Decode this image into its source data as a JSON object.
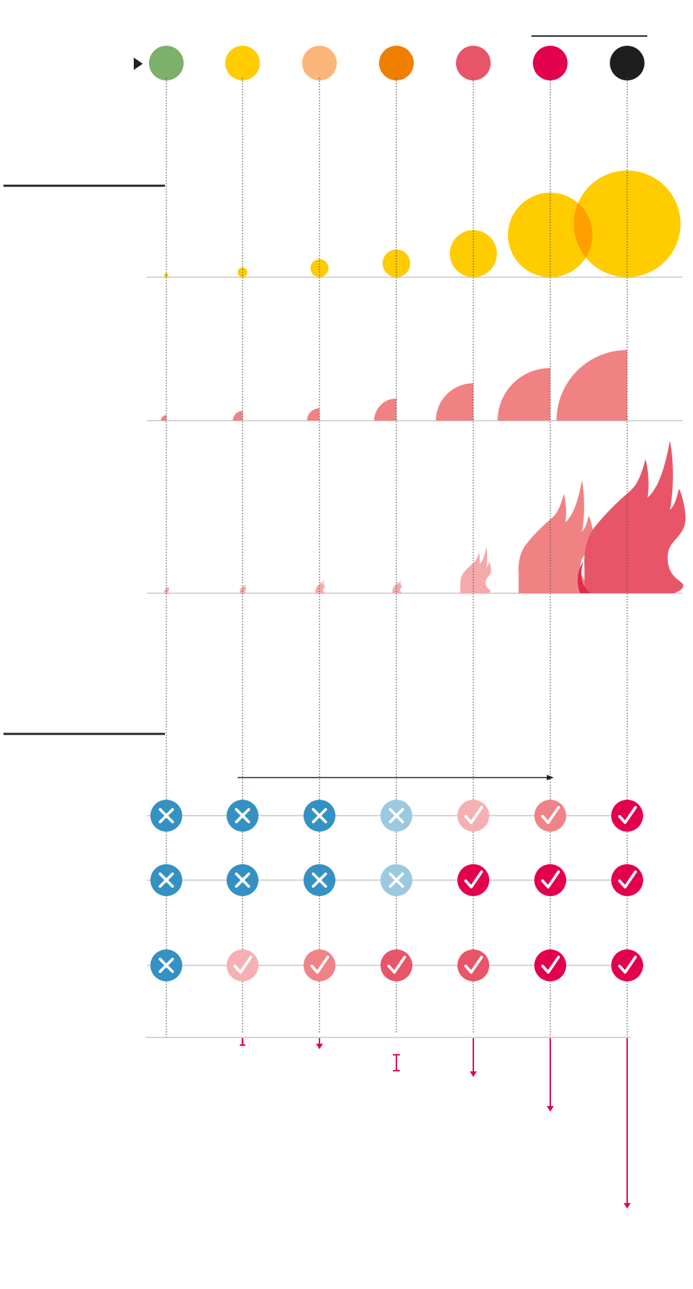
{
  "colors": {
    "background": "#ffffff",
    "axis": "#bbbbbb",
    "guide": "#555555",
    "rule": "#222222",
    "heat_circle": "#ffcc00",
    "heat_overlap": "#ff9f00",
    "drought_arc": "#f08283",
    "flame_light": "#f6a9aa",
    "flame_mid": "#f08283",
    "flame_dark": "#e85568",
    "flame_overlap": "#de2d4a",
    "arrow": "#e0004e",
    "x_strong": "#3591c3",
    "x_light": "#9bc9e0"
  },
  "levels": [
    {
      "id": "level-1",
      "color": "#7db06b"
    },
    {
      "id": "level-2",
      "color": "#ffcc00"
    },
    {
      "id": "level-3",
      "color": "#f9b57a"
    },
    {
      "id": "level-4",
      "color": "#f07f00"
    },
    {
      "id": "level-5",
      "color": "#e85468"
    },
    {
      "id": "level-6",
      "color": "#e3004c"
    },
    {
      "id": "level-7",
      "color": "#1e1e1e"
    }
  ],
  "heat_circle_radius": [
    3,
    7,
    13,
    20,
    34,
    61,
    77
  ],
  "drought_arc_radius": [
    8,
    14,
    18,
    32,
    54,
    76,
    102
  ],
  "flame_height": [
    11,
    14,
    20,
    20,
    67,
    163,
    220
  ],
  "flame_tone": [
    "light",
    "light",
    "light",
    "light",
    "light",
    "mid",
    "dark"
  ],
  "status_rows": [
    {
      "id": "status-row-1",
      "marks": [
        {
          "type": "x",
          "color": "#3591c3"
        },
        {
          "type": "x",
          "color": "#3591c3"
        },
        {
          "type": "x",
          "color": "#3591c3"
        },
        {
          "type": "x",
          "color": "#9bc9e0"
        },
        {
          "type": "check",
          "color": "#f6b0b3"
        },
        {
          "type": "check",
          "color": "#ef8387"
        },
        {
          "type": "check",
          "color": "#e3004c"
        }
      ]
    },
    {
      "id": "status-row-2",
      "marks": [
        {
          "type": "x",
          "color": "#3591c3"
        },
        {
          "type": "x",
          "color": "#3591c3"
        },
        {
          "type": "x",
          "color": "#3591c3"
        },
        {
          "type": "x",
          "color": "#9bc9e0"
        },
        {
          "type": "check",
          "color": "#e3004c"
        },
        {
          "type": "check",
          "color": "#e3004c"
        },
        {
          "type": "check",
          "color": "#e3004c"
        }
      ]
    },
    {
      "id": "status-row-3",
      "marks": [
        {
          "type": "x",
          "color": "#3591c3"
        },
        {
          "type": "check",
          "color": "#f6b0b3"
        },
        {
          "type": "check",
          "color": "#ef8387"
        },
        {
          "type": "check",
          "color": "#e85568"
        },
        {
          "type": "check",
          "color": "#e85568"
        },
        {
          "type": "check",
          "color": "#e3004c"
        },
        {
          "type": "check",
          "color": "#e3004c"
        }
      ]
    }
  ],
  "decline_arrows": [
    {
      "value": 0,
      "type": "none"
    },
    {
      "value": 10,
      "type": "bar"
    },
    {
      "value": 15,
      "type": "arrow"
    },
    {
      "value": 0,
      "type": "ibar"
    },
    {
      "value": 55,
      "type": "arrow"
    },
    {
      "value": 105,
      "type": "arrow"
    },
    {
      "value": 245,
      "type": "arrow"
    }
  ]
}
